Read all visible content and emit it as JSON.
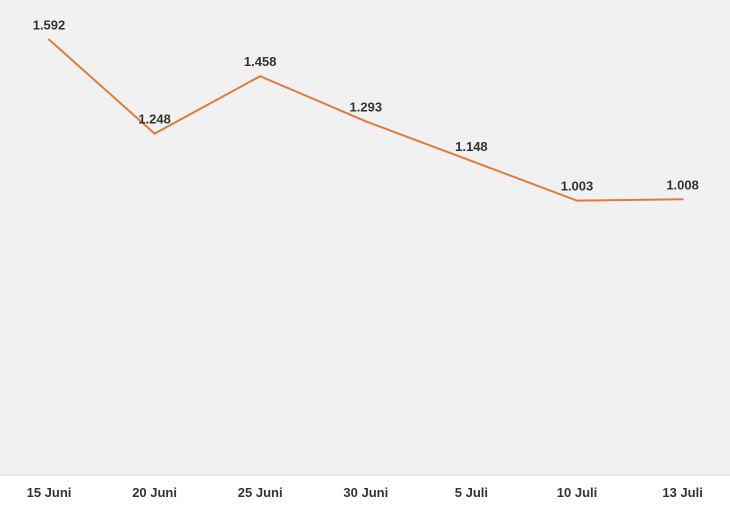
{
  "colors": {
    "plot_background": "#f2f1f1",
    "axis_band_background": "#ffffff",
    "line": "#e07b39",
    "text": "#333333"
  },
  "chart_data": {
    "type": "line",
    "title": "",
    "xlabel": "",
    "ylabel": "",
    "categories": [
      "15 Juni",
      "20 Juni",
      "25 Juni",
      "30 Juni",
      "5 Juli",
      "10 Juli",
      "13 Juli"
    ],
    "values": [
      1592,
      1248,
      1458,
      1293,
      1148,
      1003,
      1008
    ],
    "value_labels": [
      "1.592",
      "1.248",
      "1.458",
      "1.293",
      "1.148",
      "1.003",
      "1.008"
    ],
    "ylim": [
      0,
      1700
    ],
    "grid": false,
    "legend": "none"
  }
}
